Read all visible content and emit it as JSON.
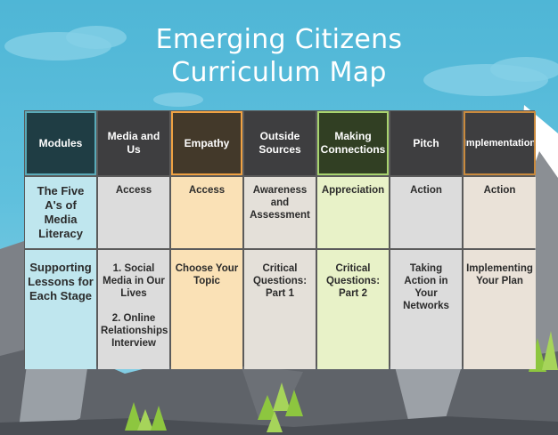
{
  "title": [
    "Emerging Citizens",
    "Curriculum Map"
  ],
  "colors": {
    "sky": "#5fc0dd",
    "modules_head": "#1f3d44",
    "modules_cell": "#bfe6ee",
    "dark_head": "#3e3e40",
    "gray_cell": "#dcdcdc",
    "empathy_head": "#43392a",
    "empathy_border": "#f0a243",
    "empathy_cell": "#fae1b6",
    "outside_cell": "#e4e0d9",
    "making_head": "#313f23",
    "making_border": "#a8d46f",
    "making_cell": "#e8f2c8",
    "impl_border": "#c98a3e",
    "impl_cell": "#eae2d8"
  },
  "columns": [
    {
      "header": "Modules",
      "five_as": "The Five A's of Media Literacy",
      "lessons": "Supporting Lessons for Each Stage"
    },
    {
      "header": "Media and Us",
      "five_as": "Access",
      "lessons": "1. Social Media in Our Lives\n\n2. Online Relationships Interview"
    },
    {
      "header": "Empathy",
      "five_as": "Access",
      "lessons": "Choose Your Topic"
    },
    {
      "header": "Outside Sources",
      "five_as": "Awareness and Assessment",
      "lessons": "Critical Questions: Part 1"
    },
    {
      "header": "Making Connections",
      "five_as": "Appreciation",
      "lessons": "Critical Questions: Part 2"
    },
    {
      "header": "Pitch",
      "five_as": "Action",
      "lessons": "Taking Action in Your Networks"
    },
    {
      "header": "Implementation",
      "five_as": "Action",
      "lessons": "Implementing Your Plan"
    }
  ]
}
